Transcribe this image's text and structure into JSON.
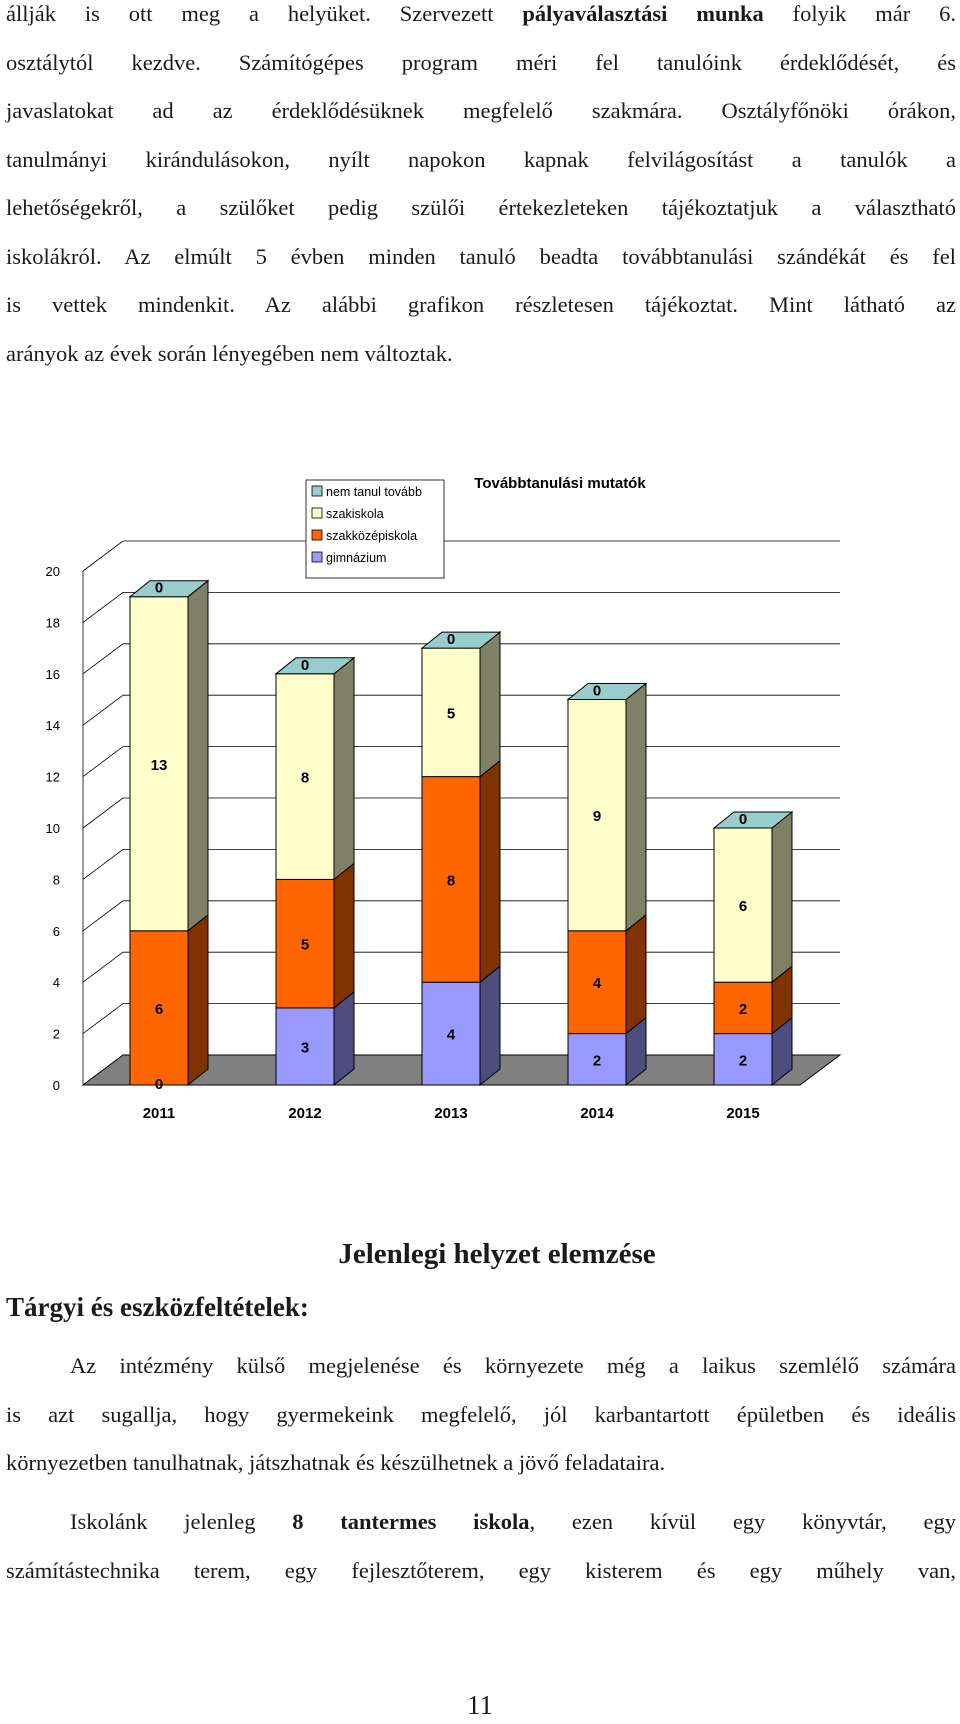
{
  "intro": {
    "lines": [
      [
        "állják is ott meg a helyüket. Szervezett ",
        "pályaválasztási munka",
        " folyik már 6."
      ],
      [
        "osztálytól kezdve. Számítógépes program méri fel tanulóink érdeklődését, és"
      ],
      [
        "javaslatokat ad az érdeklődésüknek megfelelő szakmára. Osztályfőnöki órákon,"
      ],
      [
        "tanulmányi kirándulásokon, nyílt napokon kapnak felvilágosítást a tanulók a"
      ],
      [
        "lehetőségekről, a szülőket pedig szülői értekezleteken tájékoztatjuk a választható"
      ],
      [
        "iskolákról. Az elmúlt 5 évben minden tanuló beadta továbbtanulási szándékát és fel"
      ],
      [
        "is vettek mindenkit. Az alábbi grafikon részletesen tájékoztat. Mint látható az"
      ],
      [
        "arányok az évek során lényegében nem változtak."
      ]
    ]
  },
  "chart_data": {
    "type": "bar",
    "stacked": true,
    "three_d": true,
    "title": "Továbbtanulási mutatók",
    "categories": [
      "2011",
      "2012",
      "2013",
      "2014",
      "2015"
    ],
    "series": [
      {
        "name": "gimnázium",
        "values": [
          0,
          3,
          4,
          2,
          2
        ],
        "color": "#9999ff"
      },
      {
        "name": "szakközépiskola",
        "values": [
          6,
          5,
          8,
          4,
          2
        ],
        "color": "#ff6600"
      },
      {
        "name": "szakiskola",
        "values": [
          13,
          8,
          5,
          9,
          6
        ],
        "color": "#ffffcc"
      },
      {
        "name": "nem tanul tovább",
        "values": [
          0,
          0,
          0,
          0,
          0
        ],
        "color": "#99cccc"
      }
    ],
    "legend_order": [
      "nem tanul tovább",
      "szakiskola",
      "szakközépiskola",
      "gimnázium"
    ],
    "yticks": [
      "0",
      "2",
      "4",
      "6",
      "8",
      "10",
      "12",
      "14",
      "16",
      "18",
      "20"
    ],
    "ylim": [
      0,
      20
    ],
    "legend_position": "top-center",
    "colors": {
      "wall": "#ffffff",
      "floor": "#808080",
      "grid": "#000000"
    }
  },
  "section": {
    "title": "Jelenlegi helyzet elemzése",
    "subtitle": "Tárgyi és eszközfeltételek:"
  },
  "body": {
    "p1_lines": [
      [
        "Az intézmény külső megjelenése és környezete még a laikus szemlélő számára"
      ],
      [
        "is azt sugallja, hogy gyermekeink megfelelő, jól karbantartott épületben és ideális"
      ],
      [
        "környezetben tanulhatnak, játszhatnak és készülhetnek a jövő feladataira."
      ]
    ],
    "p2_lines": [
      [
        "Iskolánk jelenleg ",
        "8 tantermes iskola",
        ", ezen kívül egy könyvtár, egy"
      ],
      [
        "számítástechnika terem, egy fejlesztőterem, egy kisterem és egy műhely van,"
      ]
    ]
  },
  "page_number": "11"
}
